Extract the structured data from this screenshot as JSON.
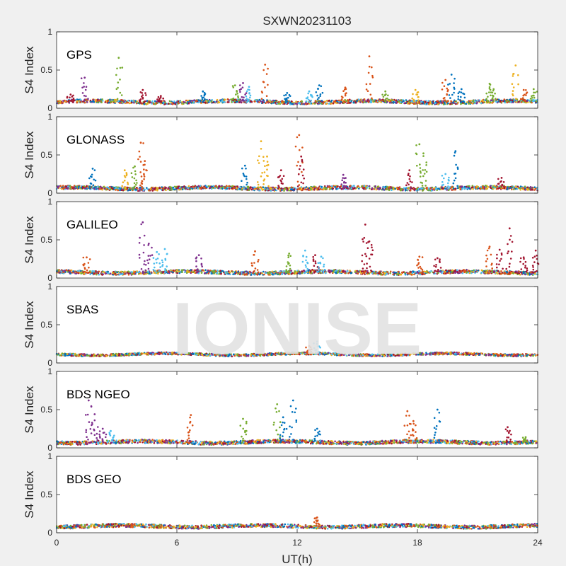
{
  "title": "SXWN20231103",
  "watermark": "IONISE",
  "colors": {
    "figure_bg": "#f0f0f0",
    "axes_bg": "#ffffff",
    "axis_line": "#262626",
    "text": "#262626",
    "watermark": "#e2e2e2",
    "series_palette": [
      "#0072BD",
      "#D95319",
      "#EDB120",
      "#7E2F8E",
      "#77AC30",
      "#4DBEEE",
      "#A2142F"
    ]
  },
  "chart_data": {
    "type": "scatter",
    "title": "SXWN20231103",
    "xlabel": "UT(h)",
    "ylabel": "S4 Index",
    "xlim": [
      0,
      24
    ],
    "ylim": [
      0,
      1
    ],
    "xticks": [
      "0",
      "6",
      "12",
      "18",
      "24"
    ],
    "yticks": [
      "0",
      "0.5",
      "1"
    ],
    "grid": false,
    "panels": [
      {
        "name": "GPS",
        "baseline": 0.08,
        "spikes": [
          [
            0.7,
            0.18,
            6
          ],
          [
            1.4,
            0.4,
            3
          ],
          [
            3.1,
            0.66,
            4
          ],
          [
            4.3,
            0.24,
            6
          ],
          [
            5.2,
            0.16,
            6
          ],
          [
            7.3,
            0.22,
            0
          ],
          [
            8.9,
            0.3,
            4
          ],
          [
            9.3,
            0.33,
            3
          ],
          [
            9.6,
            0.28,
            5
          ],
          [
            10.4,
            0.57,
            1
          ],
          [
            11.5,
            0.2,
            0
          ],
          [
            12.6,
            0.22,
            5
          ],
          [
            13.1,
            0.3,
            0
          ],
          [
            14.4,
            0.27,
            1
          ],
          [
            15.6,
            0.68,
            1
          ],
          [
            16.4,
            0.22,
            4
          ],
          [
            17.9,
            0.24,
            2
          ],
          [
            19.4,
            0.37,
            1
          ],
          [
            19.7,
            0.44,
            0
          ],
          [
            20.2,
            0.25,
            0
          ],
          [
            21.6,
            0.32,
            4
          ],
          [
            21.8,
            0.25,
            4
          ],
          [
            22.9,
            0.56,
            2
          ],
          [
            23.3,
            0.24,
            1
          ],
          [
            23.8,
            0.25,
            4
          ]
        ]
      },
      {
        "name": "GLONASS",
        "baseline": 0.06,
        "spikes": [
          [
            1.8,
            0.32,
            0
          ],
          [
            3.4,
            0.3,
            2
          ],
          [
            3.9,
            0.35,
            4
          ],
          [
            4.2,
            0.66,
            1
          ],
          [
            4.4,
            0.42,
            1
          ],
          [
            9.4,
            0.36,
            0
          ],
          [
            10.2,
            0.68,
            2
          ],
          [
            10.5,
            0.48,
            2
          ],
          [
            11.2,
            0.3,
            6
          ],
          [
            12.1,
            0.76,
            1
          ],
          [
            12.2,
            0.48,
            6
          ],
          [
            14.3,
            0.24,
            3
          ],
          [
            17.6,
            0.3,
            6
          ],
          [
            18.1,
            0.64,
            4
          ],
          [
            18.3,
            0.52,
            4
          ],
          [
            19.9,
            0.55,
            0
          ],
          [
            19.4,
            0.25,
            5
          ],
          [
            22.2,
            0.2,
            6
          ]
        ]
      },
      {
        "name": "GALILEO",
        "baseline": 0.07,
        "spikes": [
          [
            1.5,
            0.27,
            1
          ],
          [
            4.3,
            0.73,
            3
          ],
          [
            4.6,
            0.45,
            3
          ],
          [
            5.0,
            0.34,
            5
          ],
          [
            5.4,
            0.38,
            5
          ],
          [
            7.1,
            0.3,
            3
          ],
          [
            9.9,
            0.35,
            1
          ],
          [
            11.6,
            0.32,
            4
          ],
          [
            12.4,
            0.36,
            5
          ],
          [
            12.9,
            0.3,
            6
          ],
          [
            13.2,
            0.28,
            5
          ],
          [
            15.4,
            0.7,
            6
          ],
          [
            15.6,
            0.48,
            6
          ],
          [
            18.1,
            0.28,
            1
          ],
          [
            19.0,
            0.26,
            6
          ],
          [
            21.6,
            0.41,
            1
          ],
          [
            22.1,
            0.37,
            6
          ],
          [
            22.6,
            0.65,
            6
          ],
          [
            23.3,
            0.27,
            6
          ],
          [
            23.9,
            0.36,
            6
          ]
        ]
      },
      {
        "name": "SBAS",
        "baseline": 0.11,
        "spikes": [
          [
            12.6,
            0.22,
            1
          ],
          [
            13.0,
            0.28,
            5
          ]
        ]
      },
      {
        "name": "BDS NGEO",
        "baseline": 0.07,
        "spikes": [
          [
            1.6,
            0.62,
            3
          ],
          [
            1.9,
            0.44,
            3
          ],
          [
            2.3,
            0.25,
            3
          ],
          [
            2.7,
            0.22,
            5
          ],
          [
            6.7,
            0.43,
            1
          ],
          [
            9.3,
            0.38,
            4
          ],
          [
            11.0,
            0.57,
            4
          ],
          [
            11.3,
            0.4,
            0
          ],
          [
            11.8,
            0.62,
            0
          ],
          [
            13.0,
            0.25,
            0
          ],
          [
            17.5,
            0.48,
            1
          ],
          [
            17.8,
            0.35,
            1
          ],
          [
            19.0,
            0.5,
            0
          ],
          [
            22.5,
            0.27,
            6
          ],
          [
            23.4,
            0.14,
            4
          ]
        ]
      },
      {
        "name": "BDS GEO",
        "baseline": 0.08,
        "spikes": [
          [
            13.0,
            0.2,
            1
          ]
        ]
      }
    ]
  }
}
